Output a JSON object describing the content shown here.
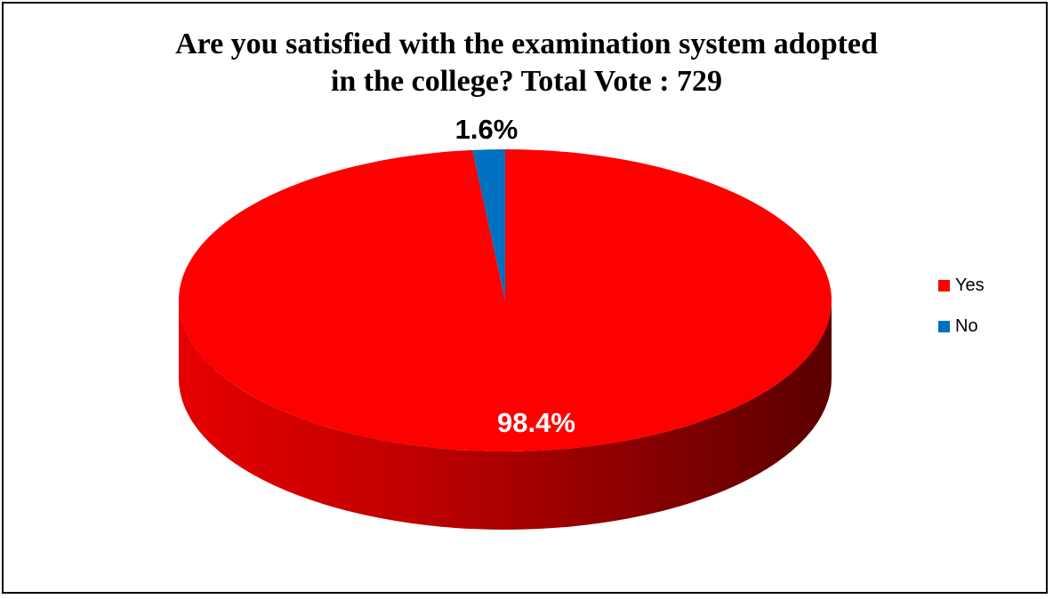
{
  "chart_data": {
    "type": "pie",
    "title_lines": [
      "Are you satisfied with the examination system adopted",
      "in the college? Total Vote : 729"
    ],
    "categories": [
      "Yes",
      "No"
    ],
    "values": [
      98.4,
      1.6
    ],
    "data_labels": [
      "98.4%",
      "1.6%"
    ],
    "colors": [
      "#ff0000",
      "#0070c0"
    ],
    "legend_position": "right",
    "three_d": true
  }
}
